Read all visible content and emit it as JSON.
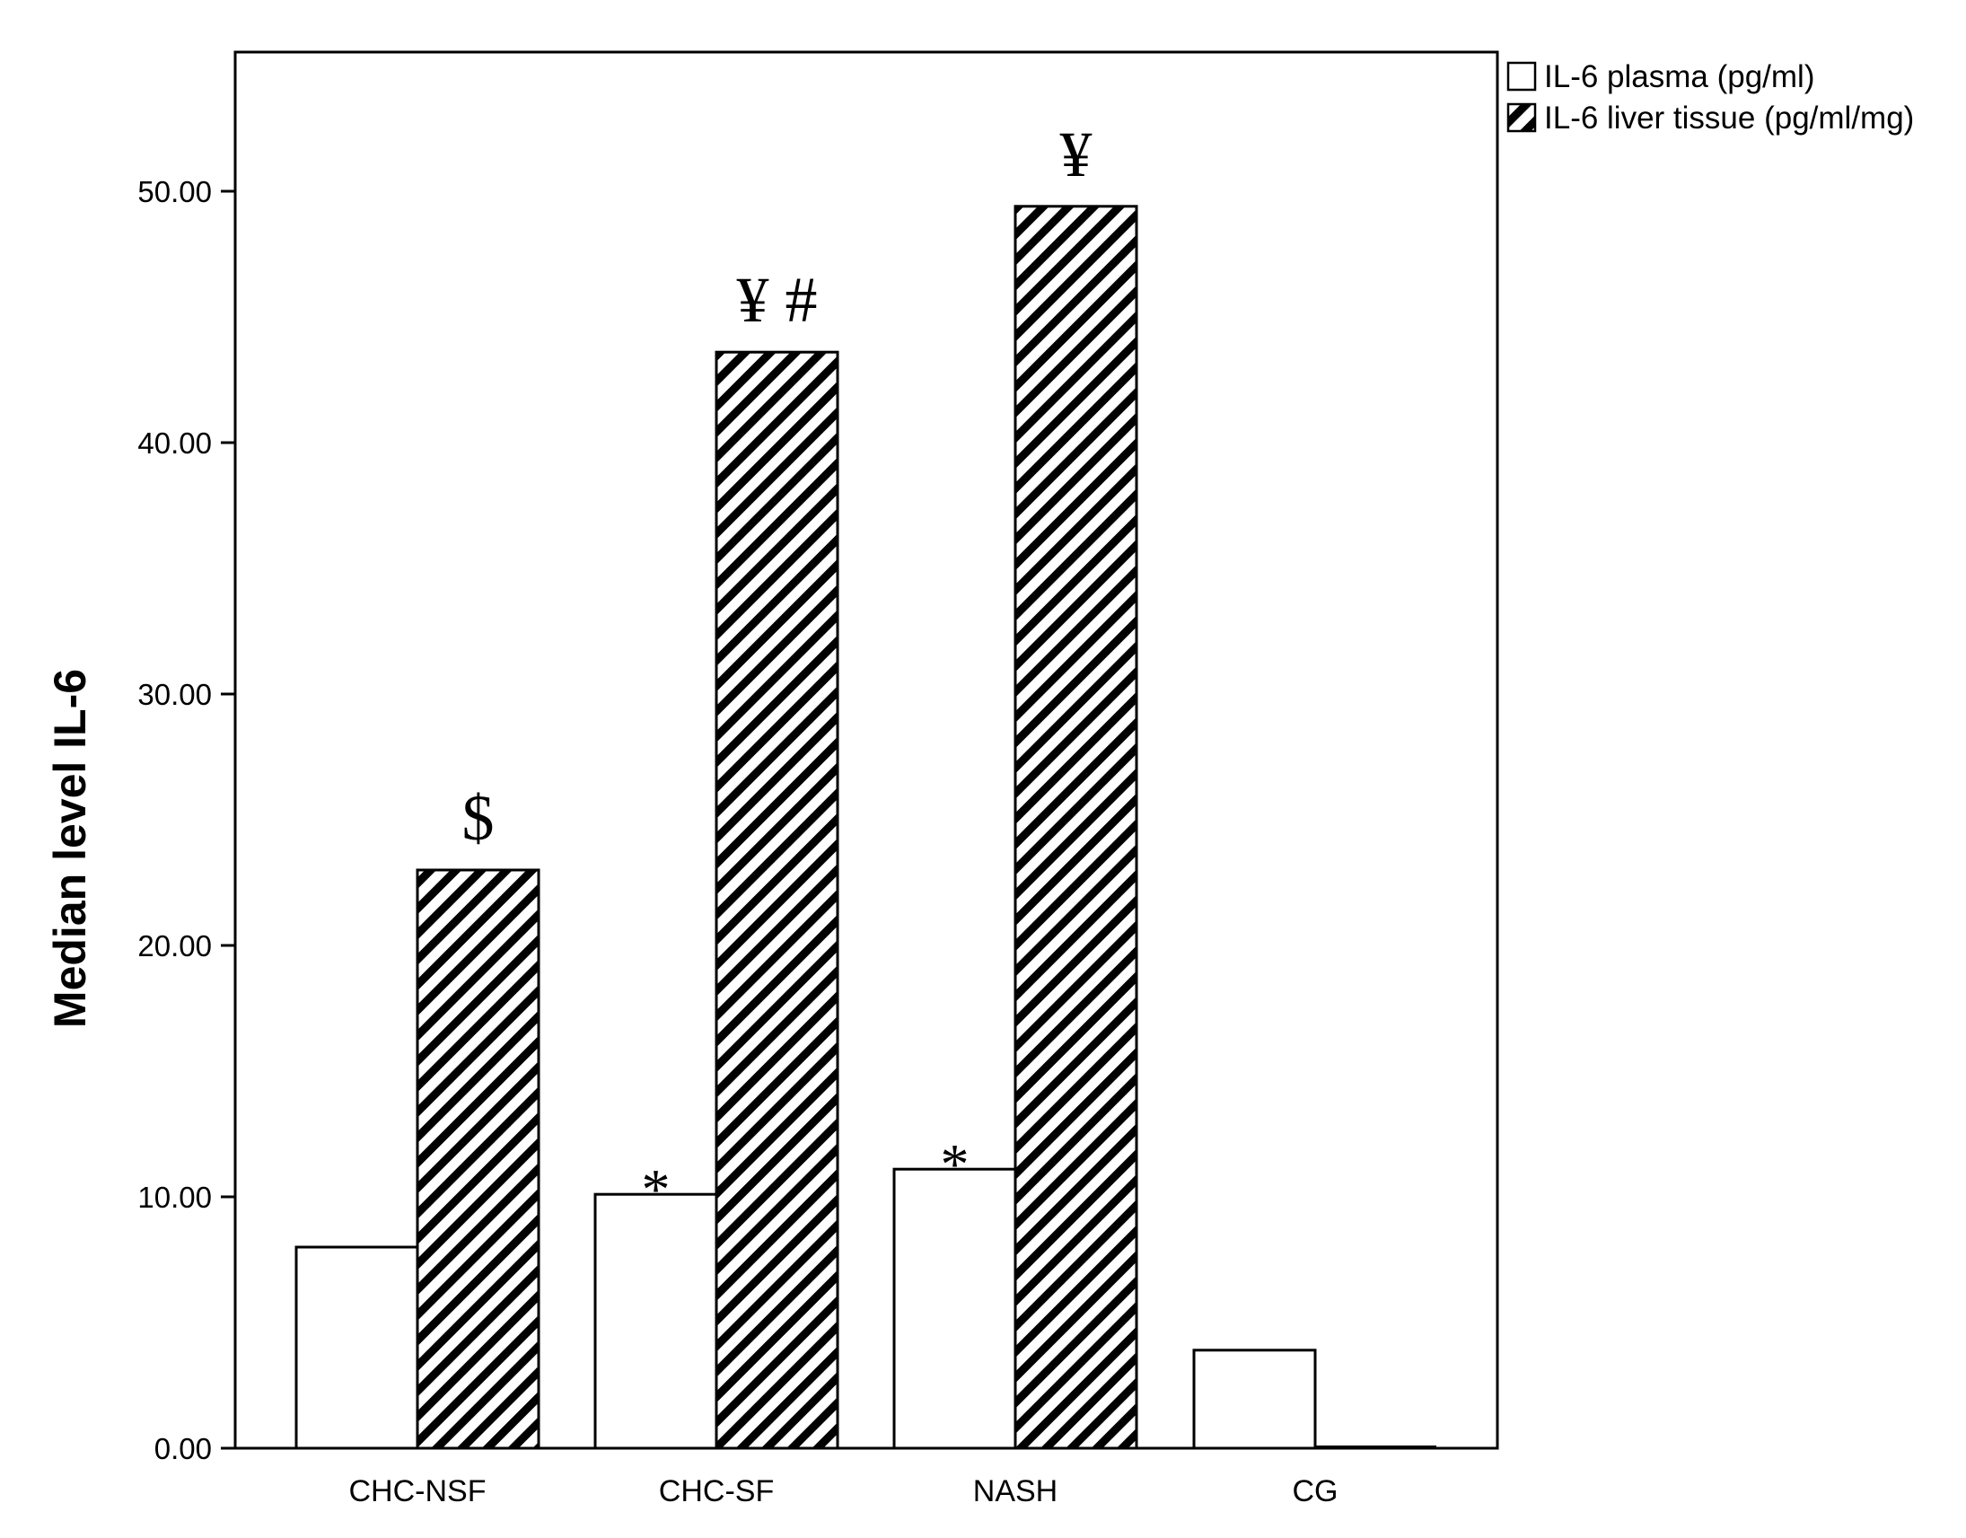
{
  "chart_data": {
    "type": "bar",
    "categories": [
      "CHC-NSF",
      "CHC-SF",
      "NASH",
      "CG"
    ],
    "series": [
      {
        "name": "IL-6 plasma (pg/ml)",
        "values": [
          8.0,
          10.1,
          11.1,
          3.9
        ],
        "pattern": "open",
        "annotations": [
          "",
          "*",
          "*",
          ""
        ]
      },
      {
        "name": "IL-6 liver tissue (pg/ml/mg)",
        "values": [
          23.0,
          43.6,
          49.4,
          0
        ],
        "pattern": "hatched",
        "annotations": [
          "$",
          "¥ #",
          "¥",
          ""
        ]
      }
    ],
    "title": "",
    "xlabel": "",
    "ylabel": "Median level IL-6",
    "ylim": [
      0,
      55.5
    ],
    "yticks": [
      "0.00",
      "10.00",
      "20.00",
      "30.00",
      "40.00",
      "50.00"
    ],
    "grid": false,
    "legend_position": "top-right, outside plot area",
    "colors": {
      "bar_fill": "#ffffff",
      "stroke": "#000000",
      "hatch": "#000000"
    }
  }
}
